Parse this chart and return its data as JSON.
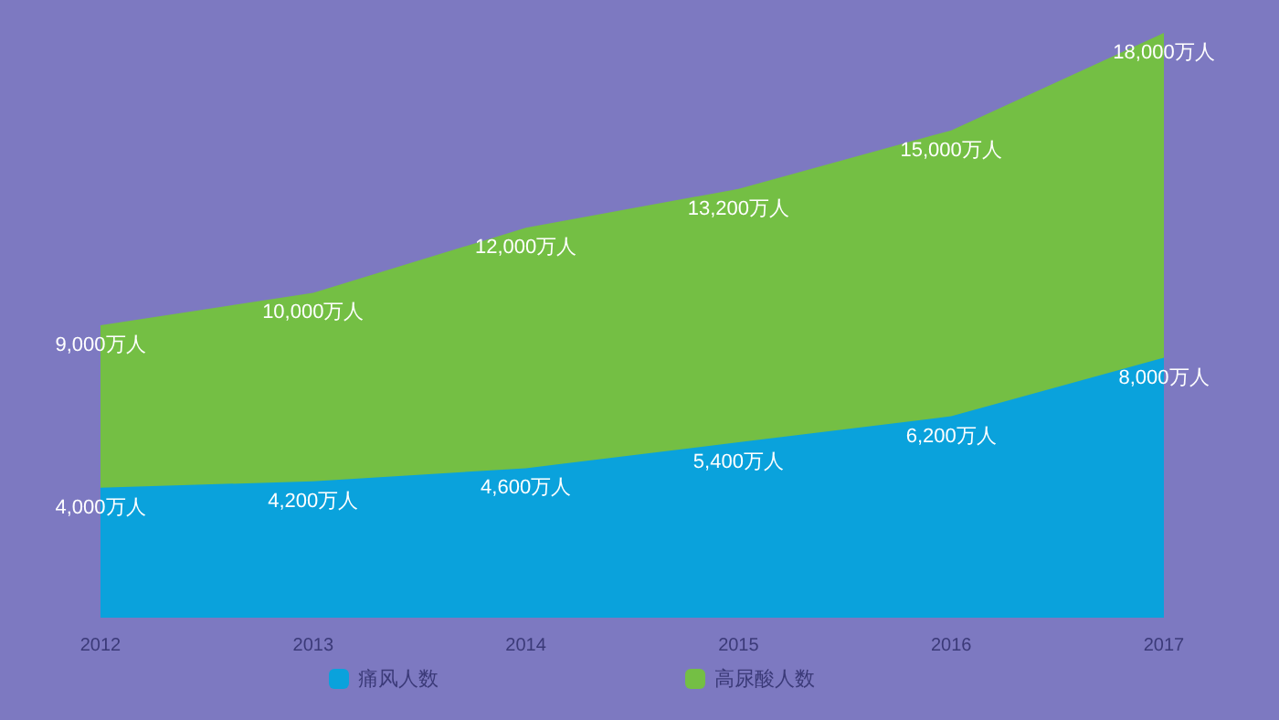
{
  "chart_data": {
    "type": "area",
    "categories": [
      "2012",
      "2013",
      "2014",
      "2015",
      "2016",
      "2017"
    ],
    "legend": "bottom",
    "series": [
      {
        "name": "痛风人数",
        "color": "#0aa2dc",
        "values": [
          4000,
          4200,
          4600,
          5400,
          6200,
          8000
        ],
        "value_labels": [
          "4,000万人",
          "4,200万人",
          "4,600万人",
          "5,400万人",
          "6,200万人",
          "8,000万人"
        ]
      },
      {
        "name": "高尿酸人数",
        "color": "#74bf44",
        "values": [
          9000,
          10000,
          12000,
          13200,
          15000,
          18000
        ],
        "value_labels": [
          "9,000万人",
          "10,000万人",
          "12,000万人",
          "13,200万人",
          "15,000万人",
          "18,000万人"
        ]
      }
    ]
  }
}
